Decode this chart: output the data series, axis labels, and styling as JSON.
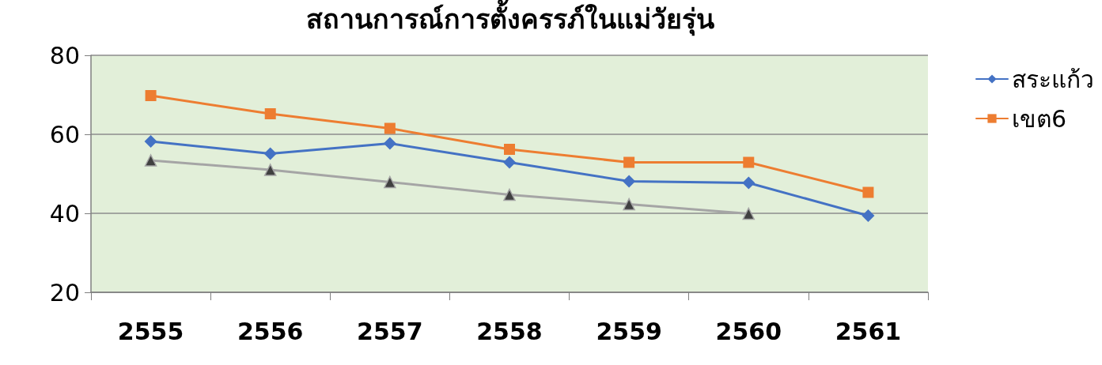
{
  "chart_data": {
    "type": "line",
    "title": "สถานการณ์การตั้งครรภ์ในแม่วัยรุ่น",
    "categories": [
      "2555",
      "2556",
      "2557",
      "2558",
      "2559",
      "2560",
      "2561"
    ],
    "series": [
      {
        "name": "สระแก้ว",
        "color": "#4472c4",
        "marker": "diamond",
        "values": [
          58.2,
          55.1,
          57.7,
          52.9,
          48.1,
          47.7,
          39.4
        ]
      },
      {
        "name": "เขต6",
        "color": "#ed7d31",
        "marker": "square",
        "values": [
          69.8,
          65.2,
          61.5,
          56.2,
          52.9,
          52.9,
          45.3
        ]
      },
      {
        "color": "#a5a5a5",
        "marker": "triangle",
        "values": [
          53.4,
          51.0,
          47.9,
          44.7,
          42.3,
          39.9,
          null
        ]
      }
    ],
    "ylim": [
      20,
      80
    ],
    "yticks": [
      20,
      40,
      60,
      80
    ],
    "grid": "y",
    "legend": "right"
  }
}
